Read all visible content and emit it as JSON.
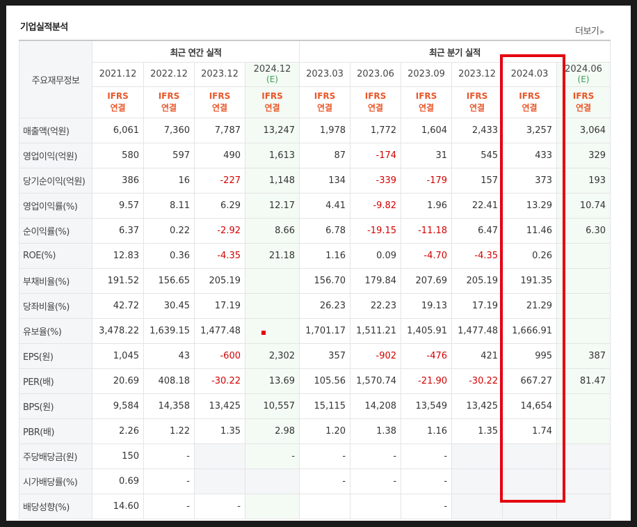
{
  "section_title": "기업실적분석",
  "more_link": "더보기",
  "header": {
    "row_label": "주요재무정보",
    "annual_group": "최근 연간 실적",
    "quarter_group": "최근 분기 실적",
    "annual_periods": [
      {
        "label": "2021.12",
        "est": ""
      },
      {
        "label": "2022.12",
        "est": ""
      },
      {
        "label": "2023.12",
        "est": ""
      },
      {
        "label": "2024.12",
        "est": "(E)"
      }
    ],
    "quarter_periods": [
      {
        "label": "2023.03",
        "est": ""
      },
      {
        "label": "2023.06",
        "est": ""
      },
      {
        "label": "2023.09",
        "est": ""
      },
      {
        "label": "2023.12",
        "est": ""
      },
      {
        "label": "2024.03",
        "est": ""
      },
      {
        "label": "2024.06",
        "est": "(E)"
      }
    ],
    "ifrs_top": "IFRS",
    "ifrs_bottom": "연결"
  },
  "rows": [
    {
      "label": "매출액(억원)",
      "values": [
        "6,061",
        "7,360",
        "7,787",
        "13,247",
        "1,978",
        "1,772",
        "1,604",
        "2,433",
        "3,257",
        "3,064"
      ]
    },
    {
      "label": "영업이익(억원)",
      "values": [
        "580",
        "597",
        "490",
        "1,613",
        "87",
        "-174",
        "31",
        "545",
        "433",
        "329"
      ]
    },
    {
      "label": "당기순이익(억원)",
      "values": [
        "386",
        "16",
        "-227",
        "1,148",
        "134",
        "-339",
        "-179",
        "157",
        "373",
        "193"
      ]
    },
    {
      "label": "영업이익률(%)",
      "values": [
        "9.57",
        "8.11",
        "6.29",
        "12.17",
        "4.41",
        "-9.82",
        "1.96",
        "22.41",
        "13.29",
        "10.74"
      ]
    },
    {
      "label": "순이익률(%)",
      "values": [
        "6.37",
        "0.22",
        "-2.92",
        "8.66",
        "6.78",
        "-19.15",
        "-11.18",
        "6.47",
        "11.46",
        "6.30"
      ]
    },
    {
      "label": "ROE(%)",
      "values": [
        "12.83",
        "0.36",
        "-4.35",
        "21.18",
        "1.16",
        "0.09",
        "-4.70",
        "-4.35",
        "0.26",
        ""
      ]
    },
    {
      "label": "부채비율(%)",
      "values": [
        "191.52",
        "156.65",
        "205.19",
        "",
        "156.70",
        "179.84",
        "207.69",
        "205.19",
        "191.35",
        ""
      ]
    },
    {
      "label": "당좌비율(%)",
      "values": [
        "42.72",
        "30.45",
        "17.19",
        "",
        "26.23",
        "22.23",
        "19.13",
        "17.19",
        "21.29",
        ""
      ]
    },
    {
      "label": "유보율(%)",
      "values": [
        "3,478.22",
        "1,639.15",
        "1,477.48",
        "",
        "1,701.17",
        "1,511.21",
        "1,405.91",
        "1,477.48",
        "1,666.91",
        ""
      ]
    },
    {
      "label": "EPS(원)",
      "values": [
        "1,045",
        "43",
        "-600",
        "2,302",
        "357",
        "-902",
        "-476",
        "421",
        "995",
        "387"
      ]
    },
    {
      "label": "PER(배)",
      "values": [
        "20.69",
        "408.18",
        "-30.22",
        "13.69",
        "105.56",
        "1,570.74",
        "-21.90",
        "-30.22",
        "667.27",
        "81.47"
      ]
    },
    {
      "label": "BPS(원)",
      "values": [
        "9,584",
        "14,358",
        "13,425",
        "10,557",
        "15,115",
        "14,208",
        "13,549",
        "13,425",
        "14,654",
        ""
      ]
    },
    {
      "label": "PBR(배)",
      "values": [
        "2.26",
        "1.22",
        "1.35",
        "2.98",
        "1.20",
        "1.38",
        "1.16",
        "1.35",
        "1.74",
        ""
      ]
    },
    {
      "label": "주당배당금(원)",
      "values": [
        "150",
        "-",
        "",
        "-",
        "-",
        "-",
        "-",
        "",
        "",
        ""
      ]
    },
    {
      "label": "시가배당률(%)",
      "values": [
        "0.69",
        "-",
        "",
        "",
        "-",
        "-",
        "-",
        "",
        "",
        ""
      ]
    },
    {
      "label": "배당성향(%)",
      "values": [
        "14.60",
        "-",
        "-",
        "",
        "",
        "",
        "-",
        "",
        "",
        ""
      ]
    }
  ],
  "colors": {
    "negative": "#d40000",
    "ifrs": "#e8572a",
    "estimate": "#3b9e5b",
    "highlight_box": "#e4000f"
  }
}
